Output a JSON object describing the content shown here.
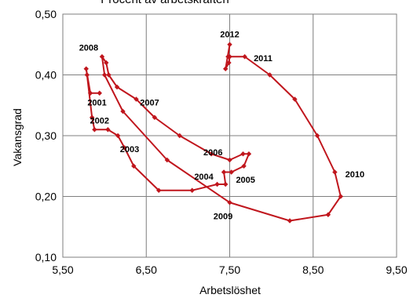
{
  "chart_data": {
    "type": "line",
    "title": "Procent av arbetskraften",
    "xlabel": "Arbetslöshet",
    "ylabel": "Vakansgrad",
    "xlim": [
      5.5,
      9.5
    ],
    "ylim": [
      0.1,
      0.5
    ],
    "x_ticks": [
      "5,50",
      "6,50",
      "7,50",
      "8,50",
      "9,50"
    ],
    "y_ticks": [
      "0,10",
      "0,20",
      "0,30",
      "0,40",
      "0,50"
    ],
    "grid": true,
    "legend": "none",
    "color": "#C0161D",
    "series": [
      {
        "points": [
          [
            5.94,
            0.37
          ],
          [
            5.83,
            0.37
          ],
          [
            5.78,
            0.41
          ],
          [
            5.79,
            0.4
          ],
          [
            5.85,
            0.33
          ],
          [
            5.88,
            0.31
          ],
          [
            6.04,
            0.31
          ],
          [
            6.16,
            0.3
          ],
          [
            6.24,
            0.28
          ],
          [
            6.35,
            0.25
          ],
          [
            6.65,
            0.21
          ],
          [
            7.05,
            0.21
          ],
          [
            7.35,
            0.22
          ],
          [
            7.45,
            0.22
          ],
          [
            7.43,
            0.24
          ],
          [
            7.52,
            0.24
          ],
          [
            7.67,
            0.25
          ],
          [
            7.73,
            0.27
          ],
          [
            7.66,
            0.27
          ],
          [
            7.5,
            0.26
          ],
          [
            7.28,
            0.27
          ],
          [
            6.9,
            0.3
          ],
          [
            6.6,
            0.33
          ],
          [
            6.38,
            0.36
          ],
          [
            6.15,
            0.38
          ],
          [
            6.05,
            0.4
          ],
          [
            6.02,
            0.42
          ],
          [
            5.97,
            0.43
          ],
          [
            6.0,
            0.4
          ],
          [
            6.22,
            0.34
          ],
          [
            6.75,
            0.26
          ],
          [
            7.5,
            0.19
          ],
          [
            8.22,
            0.16
          ],
          [
            8.68,
            0.17
          ],
          [
            8.83,
            0.2
          ],
          [
            8.76,
            0.24
          ],
          [
            8.55,
            0.3
          ],
          [
            8.28,
            0.36
          ],
          [
            7.98,
            0.4
          ],
          [
            7.68,
            0.43
          ],
          [
            7.5,
            0.43
          ],
          [
            7.49,
            0.42
          ],
          [
            7.45,
            0.41
          ],
          [
            7.5,
            0.45
          ],
          [
            7.48,
            0.43
          ]
        ]
      }
    ],
    "point_labels": [
      {
        "text": "2008",
        "x": 5.81,
        "y": 0.445
      },
      {
        "text": "2001",
        "x": 5.91,
        "y": 0.355
      },
      {
        "text": "2002",
        "x": 5.94,
        "y": 0.325
      },
      {
        "text": "2003",
        "x": 6.3,
        "y": 0.278
      },
      {
        "text": "2007",
        "x": 6.54,
        "y": 0.355
      },
      {
        "text": "2006",
        "x": 7.3,
        "y": 0.273
      },
      {
        "text": "2004",
        "x": 7.19,
        "y": 0.233
      },
      {
        "text": "2005",
        "x": 7.69,
        "y": 0.228
      },
      {
        "text": "2009",
        "x": 7.42,
        "y": 0.168
      },
      {
        "text": "2012",
        "x": 7.5,
        "y": 0.467
      },
      {
        "text": "2011",
        "x": 7.9,
        "y": 0.428
      },
      {
        "text": "2010",
        "x": 9.0,
        "y": 0.237
      }
    ]
  }
}
